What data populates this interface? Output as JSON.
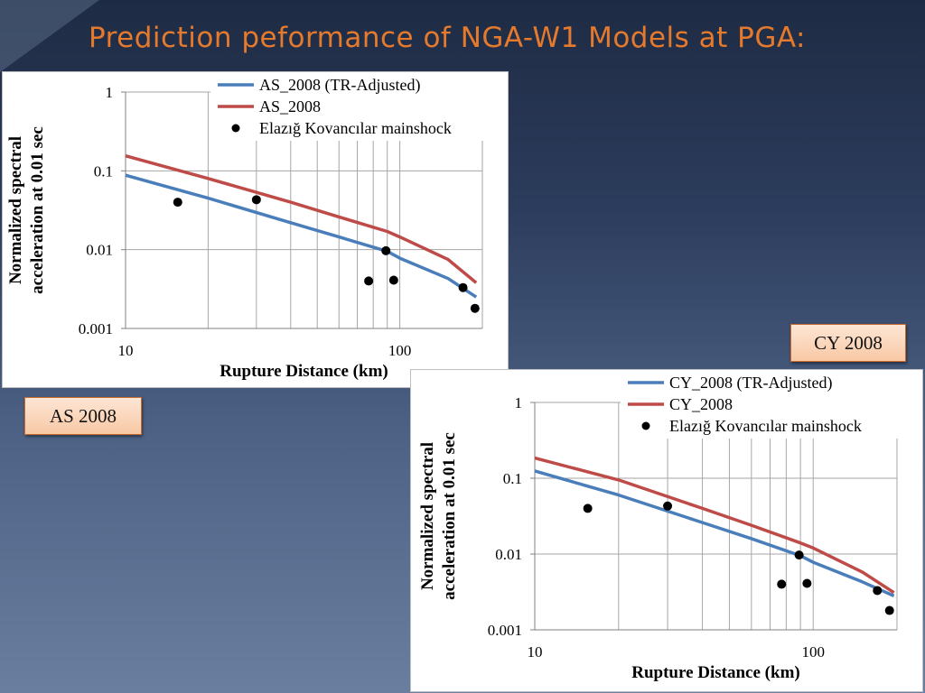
{
  "slide": {
    "title": "Prediction peformance of NGA-W1 Models at PGA:",
    "tag_as": "AS 2008",
    "tag_cy": "CY 2008"
  },
  "colors": {
    "blue": "#4a7ebb",
    "red": "#be4b48",
    "points": "#000000"
  },
  "chart_data": [
    {
      "type": "line",
      "xscale": "log",
      "yscale": "log",
      "xlim": [
        10,
        200
      ],
      "ylim": [
        0.001,
        1
      ],
      "xticks": [
        "10",
        "100"
      ],
      "yticks": [
        "0.001",
        "0.01",
        "0.1",
        "1"
      ],
      "xlabel": "Rupture Distance (km)",
      "ylabel_lines": [
        "Normalized spectral",
        "acceleration at 0.01 sec"
      ],
      "grid": "vertical",
      "legend": "top",
      "series": [
        {
          "name": "AS_2008 (TR-Adjusted)",
          "kind": "line",
          "color": "#4a7ebb",
          "points": [
            [
              10,
              0.088
            ],
            [
              20,
              0.045
            ],
            [
              40,
              0.022
            ],
            [
              60,
              0.0145
            ],
            [
              90,
              0.0095
            ],
            [
              100,
              0.0078
            ],
            [
              150,
              0.0043
            ],
            [
              190,
              0.0025
            ]
          ]
        },
        {
          "name": "AS_2008",
          "kind": "line",
          "color": "#be4b48",
          "points": [
            [
              10,
              0.155
            ],
            [
              20,
              0.08
            ],
            [
              40,
              0.04
            ],
            [
              60,
              0.026
            ],
            [
              90,
              0.017
            ],
            [
              100,
              0.0145
            ],
            [
              150,
              0.0075
            ],
            [
              190,
              0.0038
            ]
          ]
        },
        {
          "name": "Elazığ Kovancılar mainshock",
          "kind": "scatter",
          "color": "#000000",
          "points": [
            [
              15.5,
              0.04
            ],
            [
              30,
              0.043
            ],
            [
              77,
              0.004
            ],
            [
              89,
              0.0097
            ],
            [
              95,
              0.0041
            ],
            [
              170,
              0.0033
            ],
            [
              188,
              0.0018
            ]
          ]
        }
      ]
    },
    {
      "type": "line",
      "xscale": "log",
      "yscale": "log",
      "xlim": [
        10,
        200
      ],
      "ylim": [
        0.001,
        1
      ],
      "xticks": [
        "10",
        "100"
      ],
      "yticks": [
        "0.001",
        "0.01",
        "0.1",
        "1"
      ],
      "xlabel": "Rupture Distance (km)",
      "ylabel_lines": [
        "Normalized spectral",
        "acceleration at 0.01 sec"
      ],
      "grid": "vertical",
      "legend": "top",
      "series": [
        {
          "name": "CY_2008 (TR-Adjusted)",
          "kind": "line",
          "color": "#4a7ebb",
          "points": [
            [
              10,
              0.125
            ],
            [
              20,
              0.06
            ],
            [
              40,
              0.026
            ],
            [
              60,
              0.016
            ],
            [
              90,
              0.0095
            ],
            [
              100,
              0.0078
            ],
            [
              150,
              0.0043
            ],
            [
              195,
              0.0028
            ]
          ]
        },
        {
          "name": "CY_2008",
          "kind": "line",
          "color": "#be4b48",
          "points": [
            [
              10,
              0.185
            ],
            [
              20,
              0.095
            ],
            [
              40,
              0.04
            ],
            [
              60,
              0.024
            ],
            [
              90,
              0.014
            ],
            [
              100,
              0.012
            ],
            [
              150,
              0.0058
            ],
            [
              195,
              0.0031
            ]
          ]
        },
        {
          "name": "Elazığ Kovancılar mainshock",
          "kind": "scatter",
          "color": "#000000",
          "points": [
            [
              15.5,
              0.04
            ],
            [
              30,
              0.043
            ],
            [
              77,
              0.004
            ],
            [
              89,
              0.0097
            ],
            [
              95,
              0.0041
            ],
            [
              170,
              0.0033
            ],
            [
              188,
              0.0018
            ]
          ]
        }
      ]
    }
  ]
}
